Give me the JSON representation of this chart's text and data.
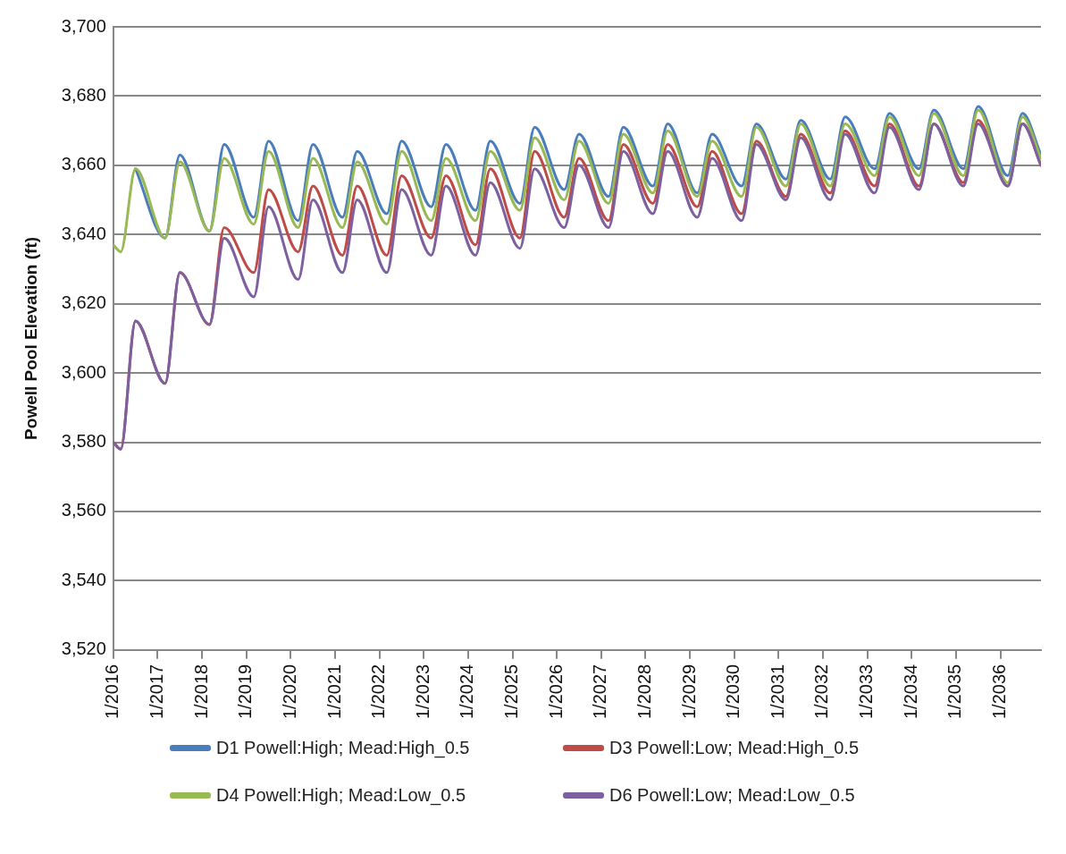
{
  "chart_data": {
    "type": "line",
    "ylabel": "Powell Pool Elevation (ft)",
    "x": [
      "2016-01",
      "2016-03",
      "2016-07",
      "2017-03",
      "2017-07",
      "2018-03",
      "2018-07",
      "2019-03",
      "2019-07",
      "2020-03",
      "2020-07",
      "2021-03",
      "2021-07",
      "2022-03",
      "2022-07",
      "2023-03",
      "2023-07",
      "2024-03",
      "2024-07",
      "2025-03",
      "2025-07",
      "2026-03",
      "2026-07",
      "2027-03",
      "2027-07",
      "2028-03",
      "2028-07",
      "2029-03",
      "2029-07",
      "2030-03",
      "2030-07",
      "2031-03",
      "2031-07",
      "2032-03",
      "2032-07",
      "2033-03",
      "2033-07",
      "2034-03",
      "2034-07",
      "2035-03",
      "2035-07",
      "2036-03",
      "2036-07",
      "2036-12"
    ],
    "series": [
      {
        "name": "D1 Powell:High; Mead:High_0.5",
        "color": "#4a7ebb",
        "values": [
          null,
          null,
          3659,
          3639,
          3663,
          3641,
          3666,
          3645,
          3667,
          3644,
          3666,
          3645,
          3664,
          3646,
          3667,
          3648,
          3666,
          3647,
          3667,
          3649,
          3671,
          3653,
          3669,
          3651,
          3671,
          3654,
          3672,
          3652,
          3669,
          3654,
          3672,
          3656,
          3673,
          3656,
          3674,
          3659,
          3675,
          3659,
          3676,
          3659,
          3677,
          3657,
          3675,
          3663
        ]
      },
      {
        "name": "D3 Powell:Low; Mead:High_0.5",
        "color": "#be4b48",
        "values": [
          3580,
          3578,
          3615,
          3597,
          3629,
          3614,
          3642,
          3629,
          3653,
          3635,
          3654,
          3634,
          3654,
          3634,
          3657,
          3639,
          3657,
          3637,
          3659,
          3639,
          3664,
          3645,
          3662,
          3644,
          3666,
          3649,
          3666,
          3648,
          3664,
          3646,
          3667,
          3651,
          3669,
          3652,
          3670,
          3654,
          3672,
          3654,
          3672,
          3655,
          3673,
          3654,
          3672,
          3660
        ]
      },
      {
        "name": "D4 Powell:High; Mead:Low_0.5",
        "color": "#98b954",
        "values": [
          3637,
          3635,
          3659,
          3639,
          3661,
          3641,
          3662,
          3643,
          3664,
          3642,
          3662,
          3642,
          3661,
          3643,
          3664,
          3644,
          3662,
          3644,
          3664,
          3647,
          3668,
          3650,
          3667,
          3649,
          3669,
          3652,
          3670,
          3651,
          3667,
          3651,
          3671,
          3654,
          3672,
          3654,
          3672,
          3657,
          3674,
          3657,
          3675,
          3657,
          3676,
          3655,
          3674,
          3662
        ]
      },
      {
        "name": "D6 Powell:Low; Mead:Low_0.5",
        "color": "#7d60a0",
        "values": [
          3580,
          3578,
          3615,
          3597,
          3629,
          3614,
          3639,
          3622,
          3648,
          3627,
          3650,
          3629,
          3650,
          3629,
          3653,
          3634,
          3654,
          3634,
          3655,
          3636,
          3659,
          3642,
          3660,
          3642,
          3664,
          3646,
          3664,
          3645,
          3662,
          3644,
          3666,
          3650,
          3668,
          3650,
          3669,
          3652,
          3671,
          3653,
          3672,
          3654,
          3672,
          3654,
          3672,
          3660
        ]
      }
    ],
    "xlim": [
      "2016-01",
      "2036-12"
    ],
    "xticks": [
      {
        "value": "2016-01",
        "label": "1/2016"
      },
      {
        "value": "2017-01",
        "label": "1/2017"
      },
      {
        "value": "2018-01",
        "label": "1/2018"
      },
      {
        "value": "2019-01",
        "label": "1/2019"
      },
      {
        "value": "2020-01",
        "label": "1/2020"
      },
      {
        "value": "2021-01",
        "label": "1/2021"
      },
      {
        "value": "2022-01",
        "label": "1/2022"
      },
      {
        "value": "2023-01",
        "label": "1/2023"
      },
      {
        "value": "2024-01",
        "label": "1/2024"
      },
      {
        "value": "2025-01",
        "label": "1/2025"
      },
      {
        "value": "2026-01",
        "label": "1/2026"
      },
      {
        "value": "2027-01",
        "label": "1/2027"
      },
      {
        "value": "2028-01",
        "label": "1/2028"
      },
      {
        "value": "2029-01",
        "label": "1/2029"
      },
      {
        "value": "2030-01",
        "label": "1/2030"
      },
      {
        "value": "2031-01",
        "label": "1/2031"
      },
      {
        "value": "2032-01",
        "label": "1/2032"
      },
      {
        "value": "2033-01",
        "label": "1/2033"
      },
      {
        "value": "2034-01",
        "label": "1/2034"
      },
      {
        "value": "2035-01",
        "label": "1/2035"
      },
      {
        "value": "2036-01",
        "label": "1/2036"
      }
    ],
    "ylim": [
      3520,
      3700
    ],
    "yticks": [
      {
        "value": 3520,
        "label": "3,520"
      },
      {
        "value": 3540,
        "label": "3,540"
      },
      {
        "value": 3560,
        "label": "3,560"
      },
      {
        "value": 3580,
        "label": "3,580"
      },
      {
        "value": 3600,
        "label": "3,600"
      },
      {
        "value": 3620,
        "label": "3,620"
      },
      {
        "value": 3640,
        "label": "3,640"
      },
      {
        "value": 3660,
        "label": "3,660"
      },
      {
        "value": 3680,
        "label": "3,680"
      },
      {
        "value": 3700,
        "label": "3,700"
      }
    ],
    "grid": "y",
    "legend": "bottom",
    "marker": "none",
    "line_style": "solid"
  }
}
